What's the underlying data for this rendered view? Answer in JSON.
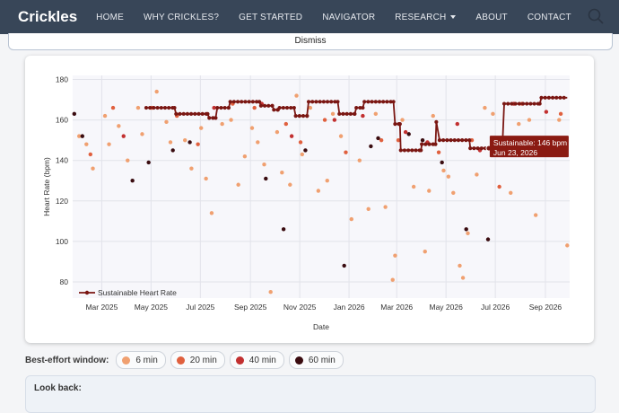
{
  "navbar": {
    "brand": "Crickles",
    "links": [
      "HOME",
      "WHY CRICKLES?",
      "GET STARTED",
      "NAVIGATOR",
      "RESEARCH",
      "ABOUT",
      "CONTACT"
    ]
  },
  "banner": {
    "dismiss_label": "Dismiss"
  },
  "chart_data": {
    "type": "scatter",
    "xlabel": "Date",
    "ylabel": "Heart Rate (bpm)",
    "ylim": [
      72,
      182
    ],
    "xlim": [
      "2025-01-24",
      "2026-10-01"
    ],
    "yticks": [
      80,
      100,
      120,
      140,
      160,
      180
    ],
    "xticks": [
      {
        "date": "2025-03-01",
        "label": "Mar 2025"
      },
      {
        "date": "2025-05-01",
        "label": "May 2025"
      },
      {
        "date": "2025-07-01",
        "label": "Jul 2025"
      },
      {
        "date": "2025-09-01",
        "label": "Sep 2025"
      },
      {
        "date": "2025-11-01",
        "label": "Nov 2025"
      },
      {
        "date": "2026-01-01",
        "label": "Jan 2026"
      },
      {
        "date": "2026-03-01",
        "label": "Mar 2026"
      },
      {
        "date": "2026-05-01",
        "label": "May 2026"
      },
      {
        "date": "2026-07-01",
        "label": "Jul 2026"
      },
      {
        "date": "2026-09-01",
        "label": "Sep 2026"
      }
    ],
    "grid": true,
    "legend": {
      "placement": "bottom-left",
      "label": "Sustainable Heart Rate"
    },
    "series": [
      {
        "name": "Sustainable Heart Rate",
        "type": "line",
        "color": "#7a1612",
        "points": [
          [
            "2025-04-25",
            166
          ],
          [
            "2025-05-30",
            166
          ],
          [
            "2025-06-01",
            163
          ],
          [
            "2025-07-10",
            163
          ],
          [
            "2025-07-12",
            161
          ],
          [
            "2025-07-20",
            161
          ],
          [
            "2025-07-22",
            166
          ],
          [
            "2025-08-05",
            166
          ],
          [
            "2025-08-07",
            169
          ],
          [
            "2025-09-12",
            169
          ],
          [
            "2025-09-14",
            167
          ],
          [
            "2025-09-28",
            167
          ],
          [
            "2025-09-30",
            165
          ],
          [
            "2025-10-05",
            165
          ],
          [
            "2025-10-07",
            166
          ],
          [
            "2025-10-25",
            166
          ],
          [
            "2025-10-27",
            162
          ],
          [
            "2025-11-10",
            162
          ],
          [
            "2025-11-12",
            169
          ],
          [
            "2025-12-18",
            169
          ],
          [
            "2025-12-20",
            163
          ],
          [
            "2026-01-08",
            163
          ],
          [
            "2026-01-10",
            166
          ],
          [
            "2026-01-18",
            166
          ],
          [
            "2026-01-20",
            169
          ],
          [
            "2026-02-25",
            169
          ],
          [
            "2026-02-27",
            158
          ],
          [
            "2026-03-05",
            158
          ],
          [
            "2026-03-06",
            145
          ],
          [
            "2026-03-31",
            145
          ],
          [
            "2026-04-01",
            148
          ],
          [
            "2026-04-18",
            148
          ],
          [
            "2026-04-19",
            159
          ],
          [
            "2026-04-23",
            150
          ],
          [
            "2026-05-30",
            150
          ],
          [
            "2026-05-31",
            146
          ],
          [
            "2026-06-30",
            146
          ],
          [
            "2026-07-01",
            149
          ],
          [
            "2026-07-10",
            149
          ],
          [
            "2026-07-12",
            168
          ],
          [
            "2026-08-25",
            168
          ],
          [
            "2026-08-27",
            171
          ],
          [
            "2026-09-28",
            171
          ]
        ]
      },
      {
        "name": "6 min",
        "color": "#f0a070",
        "points": [
          [
            "2025-02-01",
            152
          ],
          [
            "2025-02-10",
            148
          ],
          [
            "2025-02-18",
            136
          ],
          [
            "2025-03-05",
            162
          ],
          [
            "2025-03-10",
            148
          ],
          [
            "2025-03-22",
            157
          ],
          [
            "2025-04-02",
            140
          ],
          [
            "2025-04-15",
            166
          ],
          [
            "2025-04-20",
            153
          ],
          [
            "2025-05-08",
            174
          ],
          [
            "2025-05-20",
            159
          ],
          [
            "2025-05-25",
            149
          ],
          [
            "2025-06-12",
            150
          ],
          [
            "2025-06-20",
            136
          ],
          [
            "2025-07-02",
            156
          ],
          [
            "2025-07-08",
            131
          ],
          [
            "2025-07-15",
            114
          ],
          [
            "2025-07-28",
            158
          ],
          [
            "2025-08-08",
            160
          ],
          [
            "2025-08-17",
            128
          ],
          [
            "2025-08-25",
            142
          ],
          [
            "2025-09-03",
            156
          ],
          [
            "2025-09-10",
            149
          ],
          [
            "2025-09-18",
            138
          ],
          [
            "2025-09-26",
            75
          ],
          [
            "2025-10-04",
            154
          ],
          [
            "2025-10-10",
            134
          ],
          [
            "2025-10-20",
            128
          ],
          [
            "2025-10-28",
            172
          ],
          [
            "2025-11-04",
            143
          ],
          [
            "2025-11-14",
            166
          ],
          [
            "2025-11-24",
            125
          ],
          [
            "2025-12-05",
            130
          ],
          [
            "2025-12-12",
            163
          ],
          [
            "2025-12-22",
            152
          ],
          [
            "2026-01-04",
            111
          ],
          [
            "2026-01-14",
            140
          ],
          [
            "2026-01-25",
            116
          ],
          [
            "2026-02-03",
            163
          ],
          [
            "2026-02-15",
            117
          ],
          [
            "2026-02-24",
            81
          ],
          [
            "2026-02-27",
            93
          ],
          [
            "2026-03-08",
            160
          ],
          [
            "2026-03-22",
            127
          ],
          [
            "2026-04-05",
            95
          ],
          [
            "2026-04-10",
            125
          ],
          [
            "2026-04-15",
            162
          ],
          [
            "2026-04-28",
            135
          ],
          [
            "2026-05-04",
            132
          ],
          [
            "2026-05-10",
            124
          ],
          [
            "2026-05-18",
            88
          ],
          [
            "2026-05-22",
            82
          ],
          [
            "2026-05-28",
            104
          ],
          [
            "2026-06-08",
            133
          ],
          [
            "2026-06-18",
            166
          ],
          [
            "2026-06-28",
            163
          ],
          [
            "2026-07-20",
            124
          ],
          [
            "2026-07-30",
            158
          ],
          [
            "2026-08-12",
            160
          ],
          [
            "2026-08-20",
            113
          ],
          [
            "2026-09-05",
            143
          ],
          [
            "2026-09-18",
            160
          ],
          [
            "2026-09-28",
            98
          ]
        ]
      },
      {
        "name": "20 min",
        "color": "#e0603e",
        "points": [
          [
            "2025-02-15",
            143
          ],
          [
            "2025-03-15",
            166
          ],
          [
            "2025-05-02",
            166
          ],
          [
            "2025-06-02",
            162
          ],
          [
            "2025-06-28",
            148
          ],
          [
            "2025-08-10",
            168
          ],
          [
            "2025-09-06",
            166
          ],
          [
            "2025-10-15",
            158
          ],
          [
            "2025-11-02",
            149
          ],
          [
            "2025-12-02",
            160
          ],
          [
            "2025-12-28",
            144
          ],
          [
            "2026-02-10",
            150
          ],
          [
            "2026-03-03",
            150
          ],
          [
            "2026-04-22",
            144
          ],
          [
            "2026-06-02",
            150
          ],
          [
            "2026-07-06",
            127
          ],
          [
            "2026-08-03",
            168
          ],
          [
            "2026-09-20",
            163
          ]
        ]
      },
      {
        "name": "40 min",
        "color": "#c23030",
        "points": [
          [
            "2025-03-28",
            152
          ],
          [
            "2025-07-18",
            166
          ],
          [
            "2025-09-15",
            168
          ],
          [
            "2025-10-22",
            152
          ],
          [
            "2025-12-14",
            160
          ],
          [
            "2026-01-18",
            162
          ],
          [
            "2026-03-12",
            154
          ],
          [
            "2026-04-08",
            149
          ],
          [
            "2026-05-15",
            158
          ],
          [
            "2026-06-12",
            145
          ],
          [
            "2026-07-24",
            168
          ],
          [
            "2026-09-02",
            164
          ]
        ]
      },
      {
        "name": "60 min",
        "color": "#3a0c10",
        "points": [
          [
            "2025-01-26",
            163
          ],
          [
            "2025-02-05",
            152
          ],
          [
            "2025-04-08",
            130
          ],
          [
            "2025-04-28",
            139
          ],
          [
            "2025-05-28",
            145
          ],
          [
            "2025-06-18",
            149
          ],
          [
            "2025-09-20",
            131
          ],
          [
            "2025-10-12",
            106
          ],
          [
            "2025-11-08",
            145
          ],
          [
            "2025-12-26",
            88
          ],
          [
            "2026-01-28",
            147
          ],
          [
            "2026-02-06",
            151
          ],
          [
            "2026-03-16",
            153
          ],
          [
            "2026-04-02",
            150
          ],
          [
            "2026-04-26",
            139
          ],
          [
            "2026-05-26",
            106
          ],
          [
            "2026-06-22",
            101
          ],
          [
            "2026-09-10",
            143
          ]
        ]
      }
    ],
    "tooltip": {
      "line1": "Sustainable: 146 bpm",
      "line2": "Jun 23, 2026",
      "date": "2026-06-23",
      "value": 146
    }
  },
  "window_selector": {
    "label": "Best-effort window:",
    "options": [
      {
        "label": "6 min",
        "color": "#f0a070"
      },
      {
        "label": "20 min",
        "color": "#e0603e"
      },
      {
        "label": "40 min",
        "color": "#c23030"
      },
      {
        "label": "60 min",
        "color": "#3a0c10"
      }
    ]
  },
  "lookback": {
    "label": "Look back:"
  }
}
